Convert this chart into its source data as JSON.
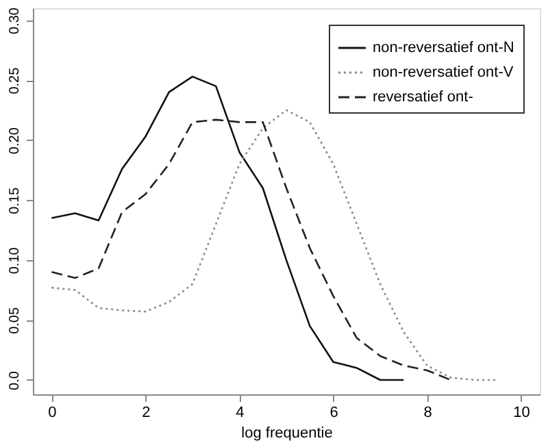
{
  "chart_data": {
    "type": "line",
    "xlabel": "log frequentie",
    "x": [
      0,
      0.5,
      1,
      1.5,
      2,
      2.5,
      3,
      3.5,
      4,
      4.5,
      5,
      5.5,
      6,
      6.5,
      7,
      7.5,
      8,
      8.5,
      9,
      9.5
    ],
    "series": [
      {
        "name": "non-reversatief ont-N",
        "color": "#111111",
        "line_style": "solid",
        "values": [
          0.135,
          0.139,
          0.133,
          0.176,
          0.203,
          0.24,
          0.253,
          0.245,
          0.19,
          0.16,
          0.1,
          0.045,
          0.015,
          0.01,
          0.0,
          0.0,
          null,
          null,
          null,
          null
        ]
      },
      {
        "name": "non-reversatief ont-V",
        "color": "#888888",
        "line_style": "dotted",
        "values": [
          0.077,
          0.075,
          0.06,
          0.058,
          0.057,
          0.065,
          0.08,
          0.13,
          0.18,
          0.21,
          0.225,
          0.215,
          0.18,
          0.13,
          0.08,
          0.04,
          0.012,
          0.002,
          0.0,
          0.0
        ]
      },
      {
        "name": "reversatief ont-",
        "color": "#222222",
        "line_style": "dashed",
        "values": [
          0.09,
          0.085,
          0.093,
          0.14,
          0.155,
          0.18,
          0.215,
          0.217,
          0.215,
          0.215,
          0.16,
          0.11,
          0.07,
          0.035,
          0.02,
          0.012,
          0.008,
          0.0,
          null,
          null
        ]
      }
    ],
    "xlim": [
      -0.4,
      10.4
    ],
    "xticks": [
      0,
      2,
      4,
      6,
      8,
      10
    ],
    "ylim": [
      -0.012,
      0.31
    ],
    "yticks": [
      {
        "value": 0,
        "label": "0.0"
      },
      0.05,
      {
        "value": 0.1,
        "label": "0.10"
      },
      0.15,
      {
        "value": 0.2,
        "label": "0.20"
      },
      0.25,
      {
        "value": 0.3,
        "label": "0.30"
      }
    ],
    "grid": false,
    "legend": "top right",
    "marker": "none"
  }
}
